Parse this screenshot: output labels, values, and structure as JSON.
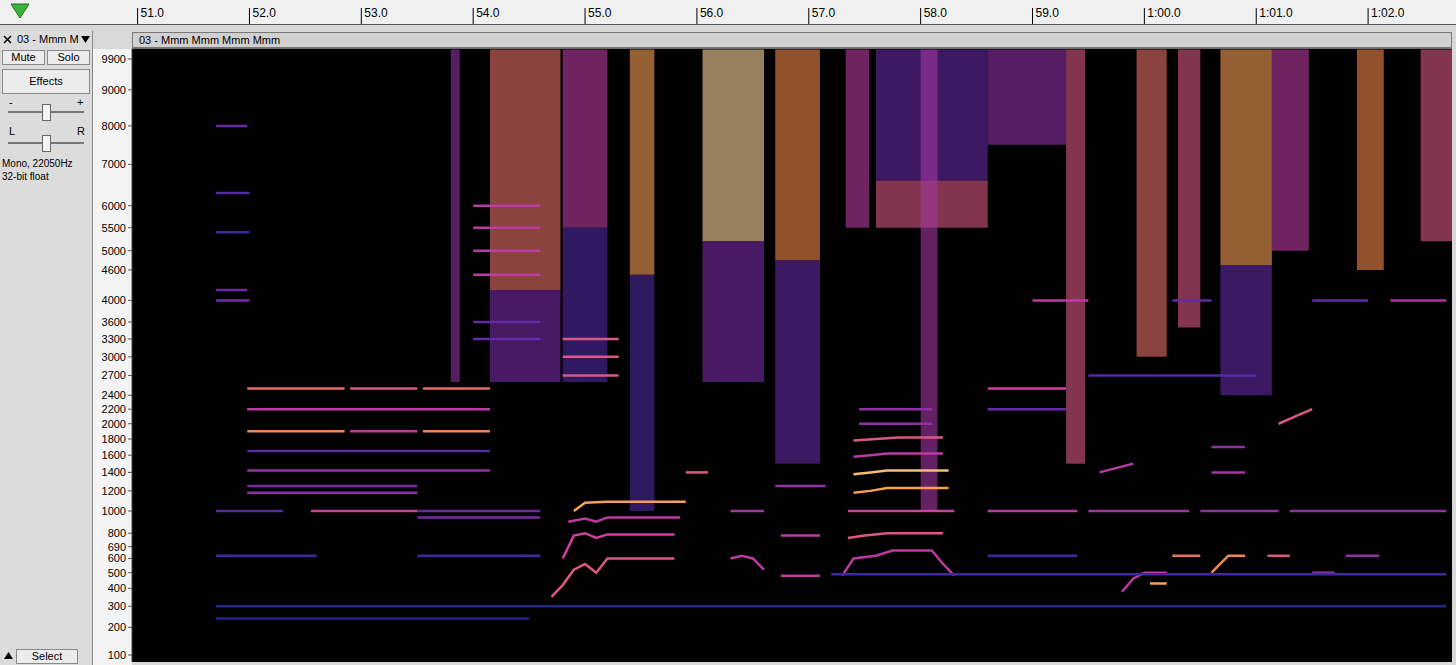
{
  "chart_data": {
    "type": "spectrogram",
    "title": "03 - Mmm Mmm Mmm Mmm",
    "xlim": [
      50.95,
      62.75
    ],
    "xticks": [
      {
        "value": 51,
        "label": "51.0"
      },
      {
        "value": 52,
        "label": "52.0"
      },
      {
        "value": 53,
        "label": "53.0"
      },
      {
        "value": 54,
        "label": "54.0"
      },
      {
        "value": 55,
        "label": "55.0"
      },
      {
        "value": 56,
        "label": "56.0"
      },
      {
        "value": 57,
        "label": "57.0"
      },
      {
        "value": 58,
        "label": "58.0"
      },
      {
        "value": 59,
        "label": "59.0"
      },
      {
        "value": 60,
        "label": "1:00.0"
      },
      {
        "value": 61,
        "label": "1:01.0"
      },
      {
        "value": 62,
        "label": "1:02.0"
      }
    ],
    "ylim": [
      80,
      10200
    ],
    "yticks": [
      100,
      200,
      300,
      400,
      500,
      600,
      690,
      800,
      1000,
      1200,
      1400,
      1600,
      1800,
      2000,
      2200,
      2400,
      2700,
      3000,
      3300,
      3600,
      4000,
      4600,
      5000,
      5500,
      6000,
      7000,
      8000,
      9000,
      9900
    ],
    "bursts": [
      {
        "t0": 53.8,
        "t1": 53.88,
        "f0": 2600,
        "f1": 10200,
        "level": 0.5
      },
      {
        "t0": 54.15,
        "t1": 54.78,
        "f0": 4200,
        "f1": 10200,
        "level": 0.75
      },
      {
        "t0": 54.15,
        "t1": 54.78,
        "f0": 2600,
        "f1": 4200,
        "level": 0.45
      },
      {
        "t0": 54.8,
        "t1": 55.2,
        "f0": 5500,
        "f1": 10200,
        "level": 0.6
      },
      {
        "t0": 54.8,
        "t1": 55.2,
        "f0": 2600,
        "f1": 5500,
        "level": 0.35
      },
      {
        "t0": 55.4,
        "t1": 55.62,
        "f0": 4500,
        "f1": 10200,
        "level": 0.85
      },
      {
        "t0": 55.4,
        "t1": 55.62,
        "f0": 1000,
        "f1": 4500,
        "level": 0.35
      },
      {
        "t0": 56.05,
        "t1": 56.6,
        "f0": 5200,
        "f1": 10200,
        "level": 0.95
      },
      {
        "t0": 56.05,
        "t1": 56.6,
        "f0": 2600,
        "f1": 5200,
        "level": 0.45
      },
      {
        "t0": 56.7,
        "t1": 57.1,
        "f0": 4800,
        "f1": 10200,
        "level": 0.8
      },
      {
        "t0": 56.7,
        "t1": 57.1,
        "f0": 1500,
        "f1": 4800,
        "level": 0.4
      },
      {
        "t0": 57.33,
        "t1": 57.54,
        "f0": 5500,
        "f1": 10200,
        "level": 0.6
      },
      {
        "t0": 57.6,
        "t1": 58.6,
        "f0": 5500,
        "f1": 6600,
        "level": 0.7
      },
      {
        "t0": 57.6,
        "t1": 58.6,
        "f0": 6600,
        "f1": 10200,
        "level": 0.4
      },
      {
        "t0": 58.0,
        "t1": 58.15,
        "f0": 1000,
        "f1": 10200,
        "level": 0.55
      },
      {
        "t0": 58.6,
        "t1": 59.3,
        "f0": 7500,
        "f1": 10200,
        "level": 0.5
      },
      {
        "t0": 59.3,
        "t1": 59.47,
        "f0": 1500,
        "f1": 10200,
        "level": 0.7
      },
      {
        "t0": 59.93,
        "t1": 60.2,
        "f0": 3000,
        "f1": 10200,
        "level": 0.75
      },
      {
        "t0": 60.3,
        "t1": 60.5,
        "f0": 3500,
        "f1": 10200,
        "level": 0.7
      },
      {
        "t0": 60.68,
        "t1": 61.14,
        "f0": 4700,
        "f1": 10200,
        "level": 0.85
      },
      {
        "t0": 60.68,
        "t1": 61.14,
        "f0": 2400,
        "f1": 4700,
        "level": 0.4
      },
      {
        "t0": 61.14,
        "t1": 61.47,
        "f0": 5000,
        "f1": 10200,
        "level": 0.6
      },
      {
        "t0": 61.9,
        "t1": 62.14,
        "f0": 4600,
        "f1": 10200,
        "level": 0.8
      },
      {
        "t0": 62.47,
        "t1": 62.75,
        "f0": 5200,
        "f1": 10200,
        "level": 0.7
      }
    ],
    "tracks": [
      {
        "t": [
          51.98,
          52.85
        ],
        "f": [
          2500,
          2500
        ],
        "level": 0.75
      },
      {
        "t": [
          52.9,
          53.5
        ],
        "f": [
          2500,
          2500
        ],
        "level": 0.7
      },
      {
        "t": [
          53.55,
          54.15
        ],
        "f": [
          2500,
          2500
        ],
        "level": 0.75
      },
      {
        "t": [
          51.98,
          54.15
        ],
        "f": [
          2200,
          2200
        ],
        "level": 0.6
      },
      {
        "t": [
          51.98,
          52.85
        ],
        "f": [
          1900,
          1900
        ],
        "level": 0.8
      },
      {
        "t": [
          52.9,
          53.5
        ],
        "f": [
          1900,
          1900
        ],
        "level": 0.6
      },
      {
        "t": [
          53.55,
          54.15
        ],
        "f": [
          1900,
          1900
        ],
        "level": 0.8
      },
      {
        "t": [
          51.98,
          54.15
        ],
        "f": [
          1650,
          1650
        ],
        "level": 0.35
      },
      {
        "t": [
          51.98,
          54.15
        ],
        "f": [
          1420,
          1420
        ],
        "level": 0.5
      },
      {
        "t": [
          51.98,
          53.5
        ],
        "f": [
          1250,
          1250
        ],
        "level": 0.45
      },
      {
        "t": [
          51.98,
          53.5
        ],
        "f": [
          1180,
          1180
        ],
        "level": 0.5
      },
      {
        "t": [
          51.7,
          52.3
        ],
        "f": [
          1000,
          1000
        ],
        "level": 0.35
      },
      {
        "t": [
          52.55,
          53.5
        ],
        "f": [
          1000,
          1000
        ],
        "level": 0.65
      },
      {
        "t": [
          53.5,
          54.6
        ],
        "f": [
          1000,
          1000
        ],
        "level": 0.4
      },
      {
        "t": [
          53.5,
          54.6
        ],
        "f": [
          940,
          940
        ],
        "level": 0.45
      },
      {
        "t": [
          51.7,
          52.6
        ],
        "f": [
          620,
          620
        ],
        "level": 0.3
      },
      {
        "t": [
          53.5,
          54.6
        ],
        "f": [
          620,
          620
        ],
        "level": 0.3
      },
      {
        "t": [
          51.7,
          51.98
        ],
        "f": [
          8000,
          8000
        ],
        "level": 0.4
      },
      {
        "t": [
          51.7,
          52.0
        ],
        "f": [
          6300,
          6300
        ],
        "level": 0.35
      },
      {
        "t": [
          51.7,
          52.0
        ],
        "f": [
          5400,
          5400
        ],
        "level": 0.3
      },
      {
        "t": [
          51.7,
          51.98
        ],
        "f": [
          4200,
          4200
        ],
        "level": 0.4
      },
      {
        "t": [
          51.7,
          52.0
        ],
        "f": [
          4000,
          4000
        ],
        "level": 0.45
      },
      {
        "t": [
          54.0,
          54.6
        ],
        "f": [
          6000,
          6000
        ],
        "level": 0.6
      },
      {
        "t": [
          54.0,
          54.6
        ],
        "f": [
          5500,
          5500
        ],
        "level": 0.6
      },
      {
        "t": [
          54.0,
          54.6
        ],
        "f": [
          5000,
          5000
        ],
        "level": 0.6
      },
      {
        "t": [
          54.0,
          54.6
        ],
        "f": [
          4500,
          4500
        ],
        "level": 0.6
      },
      {
        "t": [
          54.0,
          54.6
        ],
        "f": [
          3600,
          3600
        ],
        "level": 0.4
      },
      {
        "t": [
          54.0,
          54.6
        ],
        "f": [
          3300,
          3300
        ],
        "level": 0.4
      },
      {
        "t": [
          54.7,
          54.8,
          54.9,
          55.0,
          55.1,
          55.2,
          55.8
        ],
        "f": [
          350,
          420,
          520,
          560,
          500,
          600,
          600
        ],
        "level": 0.7
      },
      {
        "t": [
          54.8,
          54.9,
          55.0,
          55.1,
          55.2,
          55.8
        ],
        "f": [
          600,
          780,
          800,
          760,
          790,
          790
        ],
        "level": 0.65
      },
      {
        "t": [
          54.85,
          55.0,
          55.1,
          55.2,
          55.85
        ],
        "f": [
          900,
          930,
          900,
          940,
          940
        ],
        "level": 0.6
      },
      {
        "t": [
          54.9,
          55.0,
          55.2,
          55.9
        ],
        "f": [
          1000,
          1080,
          1090,
          1090
        ],
        "level": 0.85
      },
      {
        "t": [
          54.8,
          55.3
        ],
        "f": [
          2700,
          2700
        ],
        "level": 0.7
      },
      {
        "t": [
          54.8,
          55.3
        ],
        "f": [
          3000,
          3000
        ],
        "level": 0.7
      },
      {
        "t": [
          54.8,
          55.3
        ],
        "f": [
          3300,
          3300
        ],
        "level": 0.7
      },
      {
        "t": [
          55.9,
          56.1
        ],
        "f": [
          1400,
          1400
        ],
        "level": 0.7
      },
      {
        "t": [
          56.3,
          56.4,
          56.5,
          56.6
        ],
        "f": [
          600,
          620,
          600,
          520
        ],
        "level": 0.6
      },
      {
        "t": [
          56.3,
          56.6
        ],
        "f": [
          1000,
          1000
        ],
        "level": 0.55
      },
      {
        "t": [
          56.75,
          57.1
        ],
        "f": [
          480,
          480
        ],
        "level": 0.6
      },
      {
        "t": [
          56.75,
          57.1
        ],
        "f": [
          780,
          780
        ],
        "level": 0.6
      },
      {
        "t": [
          56.7,
          57.15
        ],
        "f": [
          1250,
          1250
        ],
        "level": 0.5
      },
      {
        "t": [
          57.3,
          57.4,
          57.6,
          57.75,
          58.1,
          58.2,
          58.3
        ],
        "f": [
          480,
          600,
          620,
          660,
          660,
          560,
          480
        ],
        "level": 0.6
      },
      {
        "t": [
          57.35,
          58.3
        ],
        "f": [
          1000,
          1000
        ],
        "level": 0.65
      },
      {
        "t": [
          57.35,
          57.5,
          57.7,
          58.2
        ],
        "f": [
          760,
          780,
          800,
          800
        ],
        "level": 0.7
      },
      {
        "t": [
          57.4,
          57.55,
          57.7,
          58.25
        ],
        "f": [
          1180,
          1200,
          1230,
          1230
        ],
        "level": 0.85
      },
      {
        "t": [
          57.4,
          57.55,
          57.7,
          58.25
        ],
        "f": [
          1380,
          1400,
          1420,
          1420
        ],
        "level": 0.9
      },
      {
        "t": [
          57.4,
          57.55,
          57.7,
          58.2
        ],
        "f": [
          1580,
          1600,
          1620,
          1620
        ],
        "level": 0.6
      },
      {
        "t": [
          57.4,
          57.6,
          57.8,
          58.2
        ],
        "f": [
          1780,
          1800,
          1820,
          1820
        ],
        "level": 0.7
      },
      {
        "t": [
          57.45,
          58.1
        ],
        "f": [
          2000,
          2000
        ],
        "level": 0.5
      },
      {
        "t": [
          57.45,
          58.1
        ],
        "f": [
          2200,
          2200
        ],
        "level": 0.5
      },
      {
        "t": [
          58.6,
          59.3
        ],
        "f": [
          2500,
          2500
        ],
        "level": 0.65
      },
      {
        "t": [
          58.6,
          59.4
        ],
        "f": [
          1000,
          1000
        ],
        "level": 0.6
      },
      {
        "t": [
          58.6,
          59.4
        ],
        "f": [
          620,
          620
        ],
        "level": 0.3
      },
      {
        "t": [
          58.6,
          59.3
        ],
        "f": [
          2200,
          2200
        ],
        "level": 0.4
      },
      {
        "t": [
          59.0,
          59.5
        ],
        "f": [
          4000,
          4000
        ],
        "level": 0.6
      },
      {
        "t": [
          59.5,
          60.4
        ],
        "f": [
          1000,
          1000
        ],
        "level": 0.55
      },
      {
        "t": [
          60.5,
          61.2
        ],
        "f": [
          1000,
          1000
        ],
        "level": 0.5
      },
      {
        "t": [
          61.3,
          62.7
        ],
        "f": [
          1000,
          1000
        ],
        "level": 0.5
      },
      {
        "t": [
          59.8,
          59.9,
          60.0,
          60.2
        ],
        "f": [
          380,
          460,
          500,
          500
        ],
        "level": 0.6
      },
      {
        "t": [
          60.05,
          60.2
        ],
        "f": [
          430,
          430
        ],
        "level": 0.85
      },
      {
        "t": [
          60.25,
          60.5
        ],
        "f": [
          620,
          620
        ],
        "level": 0.75
      },
      {
        "t": [
          60.6,
          60.75,
          60.9
        ],
        "f": [
          500,
          620,
          620
        ],
        "level": 0.8
      },
      {
        "t": [
          61.1,
          61.3
        ],
        "f": [
          620,
          620
        ],
        "level": 0.7
      },
      {
        "t": [
          61.2,
          61.35,
          61.5
        ],
        "f": [
          2000,
          2100,
          2200
        ],
        "level": 0.7
      },
      {
        "t": [
          61.5,
          61.7
        ],
        "f": [
          500,
          500
        ],
        "level": 0.5
      },
      {
        "t": [
          61.8,
          62.1
        ],
        "f": [
          620,
          620
        ],
        "level": 0.5
      },
      {
        "t": [
          60.6,
          60.9
        ],
        "f": [
          1400,
          1400
        ],
        "level": 0.55
      },
      {
        "t": [
          60.6,
          60.9
        ],
        "f": [
          1700,
          1700
        ],
        "level": 0.5
      },
      {
        "t": [
          59.6,
          59.9
        ],
        "f": [
          1400,
          1500
        ],
        "level": 0.6
      },
      {
        "t": [
          60.25,
          60.6
        ],
        "f": [
          4000,
          4000
        ],
        "level": 0.4
      },
      {
        "t": [
          61.5,
          62.0
        ],
        "f": [
          4000,
          4000
        ],
        "level": 0.4
      },
      {
        "t": [
          62.2,
          62.7
        ],
        "f": [
          4000,
          4000
        ],
        "level": 0.55
      },
      {
        "t": [
          59.5,
          61.0
        ],
        "f": [
          2700,
          2700
        ],
        "level": 0.35
      },
      {
        "t": [
          57.2,
          62.7
        ],
        "f": [
          490,
          490
        ],
        "level": 0.3
      },
      {
        "t": [
          51.7,
          62.7
        ],
        "f": [
          300,
          300
        ],
        "level": 0.2
      },
      {
        "t": [
          51.7,
          54.5
        ],
        "f": [
          240,
          240
        ],
        "level": 0.2
      }
    ]
  },
  "track_panel": {
    "menu": "03 - Mmm M",
    "buttons": [
      "Mute",
      "Solo",
      "Effects"
    ],
    "gain_labels": [
      "-",
      "+"
    ],
    "pan_labels": [
      "L",
      "R"
    ],
    "info": [
      "Mono, 22050Hz",
      "32-bit float"
    ],
    "select": "Select"
  }
}
